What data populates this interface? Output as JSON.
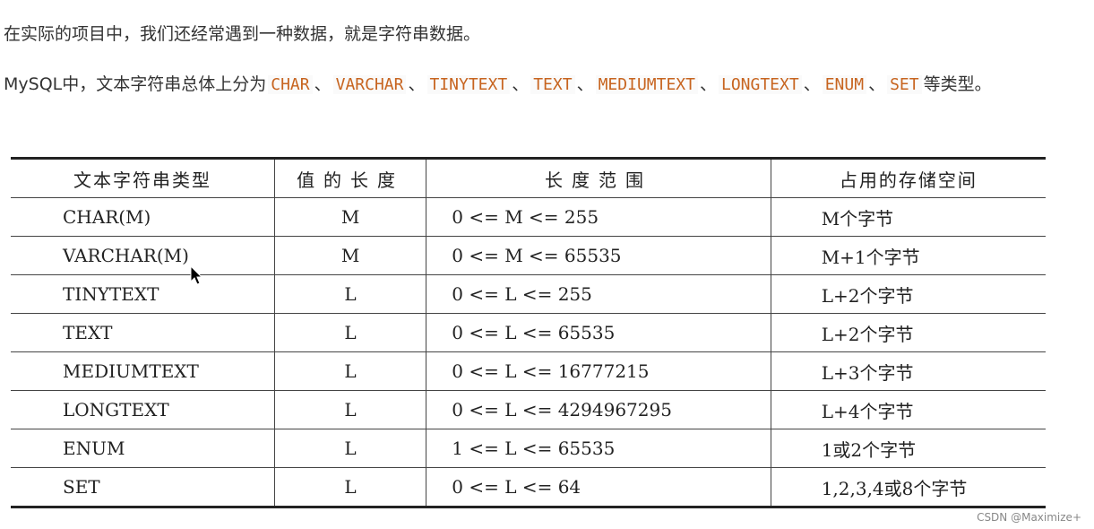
{
  "intro": "在实际的项目中，我们还经常遇到一种数据，就是字符串数据。",
  "para2": {
    "prefix": "MySQL中，文本字符串总体上分为",
    "types": [
      "CHAR",
      "VARCHAR",
      "TINYTEXT",
      "TEXT",
      "MEDIUMTEXT",
      "LONGTEXT",
      "ENUM",
      "SET"
    ],
    "sep": "、",
    "suffix": "等类型。"
  },
  "table": {
    "headers": [
      "文本字符串类型",
      "值的长度",
      "长度范围",
      "占用的存储空间"
    ],
    "rows": [
      [
        "CHAR(M)",
        "M",
        "0 <= M <= 255",
        "M个字节"
      ],
      [
        "VARCHAR(M)",
        "M",
        "0 <= M <= 65535",
        "M+1个字节"
      ],
      [
        "TINYTEXT",
        "L",
        "0 <= L <= 255",
        "L+2个字节"
      ],
      [
        "TEXT",
        "L",
        "0 <= L <= 65535",
        "L+2个字节"
      ],
      [
        "MEDIUMTEXT",
        "L",
        "0 <= L <= 16777215",
        "L+3个字节"
      ],
      [
        "LONGTEXT",
        "L",
        "0 <= L <= 4294967295",
        "L+4个字节"
      ],
      [
        "ENUM",
        "L",
        "1 <= L <= 65535",
        "1或2个字节"
      ],
      [
        "SET",
        "L",
        "0 <= L <= 64",
        "1,2,3,4或8个字节"
      ]
    ]
  },
  "watermark": "CSDN @Maximize+",
  "colors": {
    "code": "#c7641f"
  }
}
